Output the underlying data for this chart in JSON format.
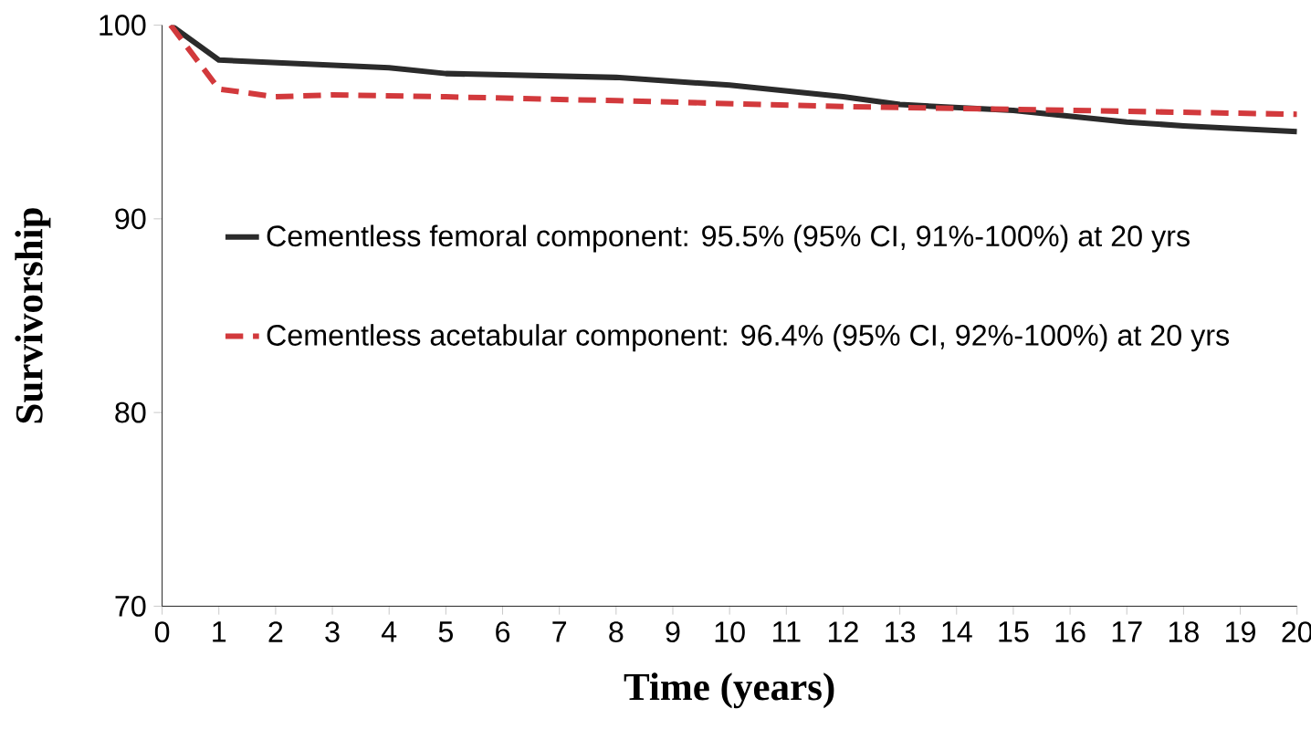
{
  "chart_data": {
    "type": "line",
    "xlabel": "Time (years)",
    "ylabel": "Survivorship",
    "xlim": [
      0,
      20
    ],
    "ylim": [
      70,
      100
    ],
    "xticks": [
      0,
      1,
      2,
      3,
      4,
      5,
      6,
      7,
      8,
      9,
      10,
      11,
      12,
      13,
      14,
      15,
      16,
      17,
      18,
      19,
      20
    ],
    "yticks": [
      70,
      80,
      90,
      100
    ],
    "legend": "center",
    "grid": false,
    "marker": "none",
    "series": [
      {
        "name": "Cementless femoral component: 95.5% (95% CI, 91%-100%) at 20 yrs",
        "color": "#2b2b2b",
        "line_style": "solid",
        "x": [
          0.15,
          1,
          4,
          5,
          8,
          10,
          11,
          12,
          13,
          15,
          17,
          18,
          20
        ],
        "values": [
          100,
          98.2,
          97.8,
          97.5,
          97.3,
          96.9,
          96.6,
          96.3,
          95.9,
          95.6,
          95.0,
          94.8,
          94.5
        ]
      },
      {
        "name": "Cementless acetabular component: 96.4% (95% CI, 92%-100%) at 20 yrs",
        "color": "#d2393c",
        "line_style": "dashed",
        "x": [
          0.15,
          1,
          2,
          3,
          5,
          8,
          12,
          14,
          16,
          20
        ],
        "values": [
          100,
          96.7,
          96.3,
          96.4,
          96.3,
          96.1,
          95.8,
          95.7,
          95.6,
          95.4
        ]
      }
    ]
  }
}
